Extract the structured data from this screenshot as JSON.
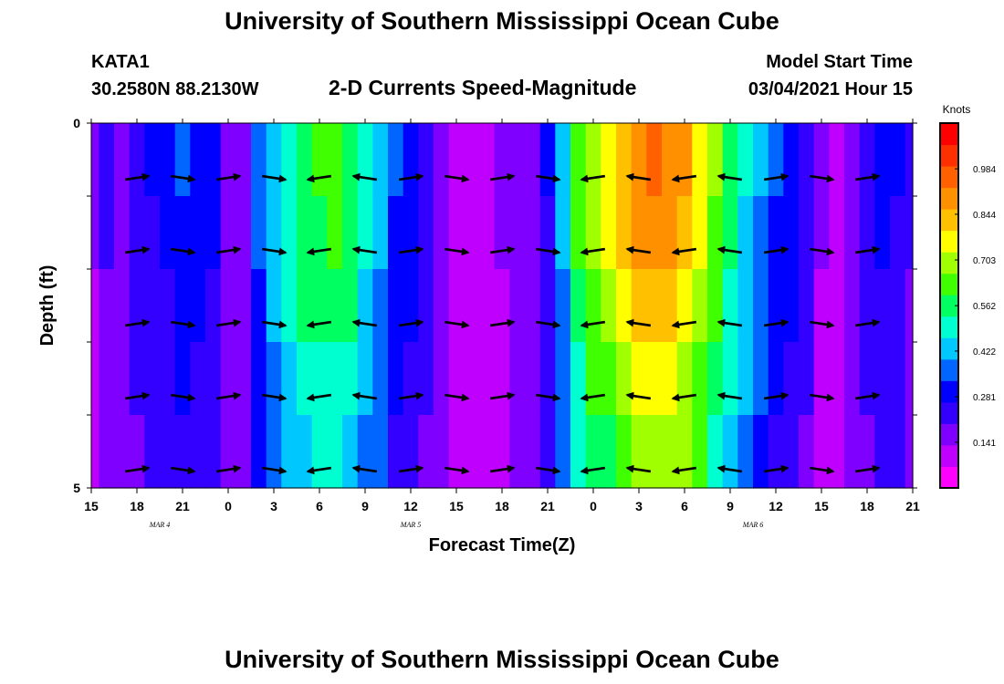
{
  "header": {
    "title_top": "University of Southern Mississippi Ocean Cube",
    "station": "KATA1",
    "coords": "30.2580N 88.2130W",
    "subtitle": "2-D Currents Speed-Magnitude",
    "model_start_label": "Model Start Time",
    "model_start_value": "03/04/2021 Hour 15",
    "title_bottom": "University of Southern Mississippi Ocean Cube"
  },
  "colors": {
    "scale": [
      "#ff00ff",
      "#c000ff",
      "#8000ff",
      "#3300ff",
      "#0000ff",
      "#0066ff",
      "#00c8ff",
      "#00ffd0",
      "#00ff60",
      "#40ff00",
      "#a0ff00",
      "#ffff00",
      "#ffc000",
      "#ff9000",
      "#ff6000",
      "#ff3000",
      "#ff0000"
    ]
  },
  "chart_data": {
    "type": "heatmap",
    "title": "2-D Currents Speed-Magnitude",
    "xlabel": "Forecast Time(Z)",
    "ylabel": "Depth (ft)",
    "xlim": [
      0,
      54
    ],
    "ylim": [
      0,
      5
    ],
    "x_ticks": [
      {
        "x": 0,
        "label": "15"
      },
      {
        "x": 3,
        "label": "18"
      },
      {
        "x": 6,
        "label": "21"
      },
      {
        "x": 9,
        "label": "0"
      },
      {
        "x": 12,
        "label": "3"
      },
      {
        "x": 15,
        "label": "6"
      },
      {
        "x": 18,
        "label": "9"
      },
      {
        "x": 21,
        "label": "12"
      },
      {
        "x": 24,
        "label": "15"
      },
      {
        "x": 27,
        "label": "18"
      },
      {
        "x": 30,
        "label": "21"
      },
      {
        "x": 33,
        "label": "0"
      },
      {
        "x": 36,
        "label": "3"
      },
      {
        "x": 39,
        "label": "6"
      },
      {
        "x": 42,
        "label": "9"
      },
      {
        "x": 45,
        "label": "12"
      },
      {
        "x": 48,
        "label": "15"
      },
      {
        "x": 51,
        "label": "18"
      },
      {
        "x": 54,
        "label": "21"
      }
    ],
    "day_labels": [
      {
        "x": 4.5,
        "label": "MAR 4"
      },
      {
        "x": 21,
        "label": "MAR 5"
      },
      {
        "x": 43.5,
        "label": "MAR 6"
      }
    ],
    "y_tick_labels": [
      {
        "depth": 0,
        "label": "0"
      },
      {
        "depth": 5,
        "label": "5"
      }
    ],
    "colorbar": {
      "title": "Knots",
      "min": 0.0,
      "max": 1.125,
      "ticks": [
        0.141,
        0.281,
        0.422,
        0.562,
        0.703,
        0.844,
        0.984
      ],
      "tick_labels": [
        "0.141",
        "0.281",
        "0.422",
        "0.562",
        "0.703",
        "0.844",
        "0.984"
      ]
    },
    "speed_profile": {
      "hours": [
        0,
        1,
        2,
        3,
        4,
        5,
        6,
        7,
        8,
        9,
        10,
        11,
        12,
        13,
        14,
        15,
        16,
        17,
        18,
        19,
        20,
        21,
        22,
        23,
        24,
        25,
        26,
        27,
        28,
        29,
        30,
        31,
        32,
        33,
        34,
        35,
        36,
        37,
        38,
        39,
        40,
        41,
        42,
        43,
        44,
        45,
        46,
        47,
        48,
        49,
        50,
        51,
        52,
        53,
        54
      ],
      "values": [
        0.15,
        0.22,
        0.18,
        0.25,
        0.28,
        0.3,
        0.35,
        0.33,
        0.3,
        0.2,
        0.2,
        0.38,
        0.48,
        0.55,
        0.62,
        0.64,
        0.66,
        0.62,
        0.52,
        0.45,
        0.35,
        0.32,
        0.25,
        0.18,
        0.12,
        0.12,
        0.13,
        0.15,
        0.18,
        0.2,
        0.28,
        0.45,
        0.65,
        0.75,
        0.8,
        0.88,
        0.95,
        0.97,
        0.95,
        0.9,
        0.82,
        0.7,
        0.6,
        0.5,
        0.42,
        0.35,
        0.32,
        0.25,
        0.15,
        0.1,
        0.18,
        0.25,
        0.3,
        0.28,
        0.22
      ]
    },
    "depth_factors": [
      0.96,
      0.92,
      0.86,
      0.8,
      0.74
    ]
  }
}
